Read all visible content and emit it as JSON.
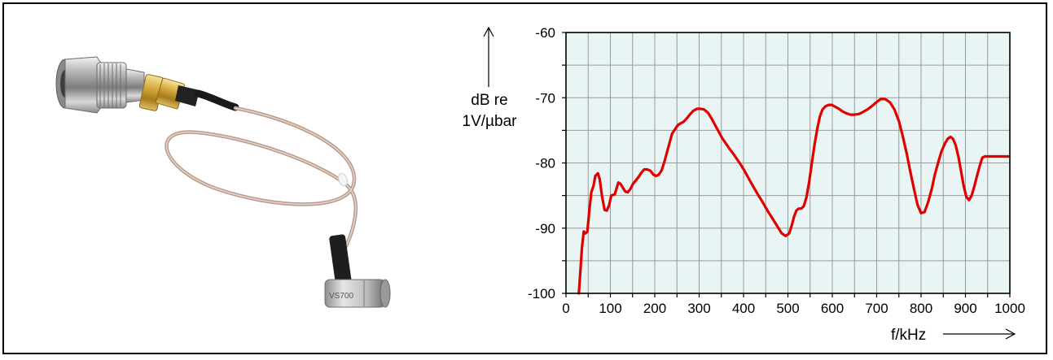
{
  "colors": {
    "plot_background": "#e9f5f5",
    "grid": "#9a9a9a",
    "curve": "#e00000",
    "frame": "#000000"
  },
  "product_image": {
    "engraving": "VS700"
  },
  "chart_data": {
    "type": "line",
    "title": "",
    "xlabel": "f/kHz",
    "ylabel_line1": "dB re",
    "ylabel_line2": "1V/µbar",
    "xlim": [
      0,
      1000
    ],
    "ylim": [
      -100,
      -60
    ],
    "x_ticks": [
      "0",
      "100",
      "200",
      "300",
      "400",
      "500",
      "600",
      "700",
      "800",
      "900",
      "1000"
    ],
    "y_ticks": [
      "-60",
      "-70",
      "-80",
      "-90",
      "-100"
    ],
    "y_tick_values": [
      -60,
      -70,
      -80,
      -90,
      -100
    ],
    "x_tick_values": [
      0,
      100,
      200,
      300,
      400,
      500,
      600,
      700,
      800,
      900,
      1000
    ],
    "grid": true,
    "series": [
      {
        "x": [
          29,
          33,
          36,
          40,
          44,
          48,
          53,
          57,
          62,
          66,
          72,
          76,
          81,
          87,
          92,
          97,
          102,
          110,
          118,
          123,
          128,
          134,
          139,
          145,
          151,
          157,
          163,
          169,
          176,
          183,
          190,
          197,
          203,
          209,
          215,
          221,
          227,
          233,
          239,
          246,
          252,
          259,
          265,
          272,
          280,
          287,
          295,
          303,
          311,
          320,
          328,
          336,
          344,
          352,
          360,
          368,
          376,
          384,
          393,
          402,
          411,
          421,
          431,
          442,
          453,
          464,
          475,
          486,
          495,
          503,
          509,
          514,
          519,
          524,
          530,
          536,
          542,
          548,
          554,
          560,
          566,
          572,
          578,
          585,
          592,
          599,
          607,
          615,
          623,
          632,
          641,
          650,
          660,
          669,
          679,
          689,
          699,
          709,
          719,
          730,
          740,
          750,
          759,
          768,
          776,
          784,
          792,
          800,
          808,
          816,
          824,
          831,
          839,
          846,
          854,
          860,
          866,
          872,
          878,
          884,
          890,
          896,
          902,
          908,
          914,
          920,
          926,
          932,
          938,
          944,
          950,
          956,
          962,
          968,
          974,
          980,
          986,
          992,
          998
        ],
        "y": [
          -100,
          -96,
          -93,
          -90.5,
          -90.8,
          -90.5,
          -87,
          -84.5,
          -83.5,
          -82,
          -81.6,
          -82.5,
          -85,
          -87.2,
          -87.3,
          -86.5,
          -85,
          -84.8,
          -83,
          -83.2,
          -83.8,
          -84.4,
          -84.5,
          -84,
          -83.2,
          -82.7,
          -82.2,
          -81.6,
          -81,
          -81,
          -81.2,
          -81.8,
          -82,
          -81.8,
          -81.2,
          -80,
          -78.5,
          -77,
          -75.5,
          -74.8,
          -74.2,
          -73.9,
          -73.7,
          -73.2,
          -72.5,
          -72,
          -71.7,
          -71.7,
          -71.8,
          -72.3,
          -73.2,
          -74.2,
          -75.2,
          -76.2,
          -77,
          -77.8,
          -78.5,
          -79.3,
          -80.2,
          -81.2,
          -82.3,
          -83.5,
          -84.7,
          -85.9,
          -87.2,
          -88.4,
          -89.6,
          -90.8,
          -91.2,
          -90.8,
          -89.5,
          -88.2,
          -87.3,
          -87,
          -87,
          -86.6,
          -85.2,
          -82.8,
          -80,
          -77.2,
          -74.8,
          -72.9,
          -71.8,
          -71.3,
          -71.1,
          -71.1,
          -71.4,
          -71.7,
          -72.1,
          -72.4,
          -72.6,
          -72.6,
          -72.5,
          -72.2,
          -71.8,
          -71.3,
          -70.7,
          -70.2,
          -70.2,
          -70.7,
          -71.8,
          -73.6,
          -76,
          -78.7,
          -81.4,
          -84,
          -86.4,
          -87.7,
          -87.5,
          -86,
          -84,
          -81.8,
          -79.8,
          -78.2,
          -77,
          -76.3,
          -76,
          -76.3,
          -77.3,
          -79,
          -81.2,
          -83.5,
          -85.2,
          -85.7,
          -85,
          -83.6,
          -82,
          -80.5,
          -79.2,
          -79,
          -79,
          -79,
          -79,
          -79,
          -79,
          -79,
          -79,
          -79,
          -79
        ]
      }
    ]
  }
}
